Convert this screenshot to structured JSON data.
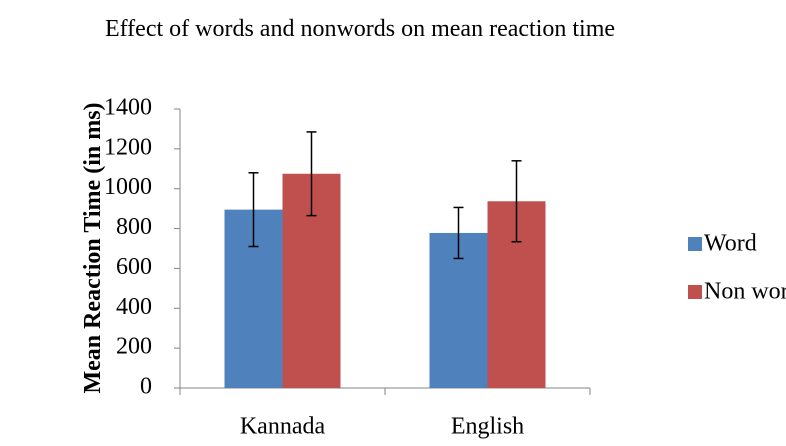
{
  "chart_data": {
    "type": "bar",
    "title": "Effect  of  words and nonwords on mean reaction time",
    "y_label": "Mean Reaction Time (in ms)",
    "categories": [
      "Kannada",
      "English"
    ],
    "series": [
      {
        "name": "Word",
        "color": "#4f81bd",
        "values": [
          895,
          778
        ],
        "errors": [
          185,
          128
        ]
      },
      {
        "name": "Non word",
        "color": "#c0504d",
        "values": [
          1075,
          937
        ],
        "errors": [
          210,
          203
        ]
      }
    ],
    "ylim": [
      0,
      1400
    ],
    "yticks": [
      0,
      200,
      400,
      600,
      800,
      1000,
      1200,
      1400
    ],
    "legend": "right"
  }
}
